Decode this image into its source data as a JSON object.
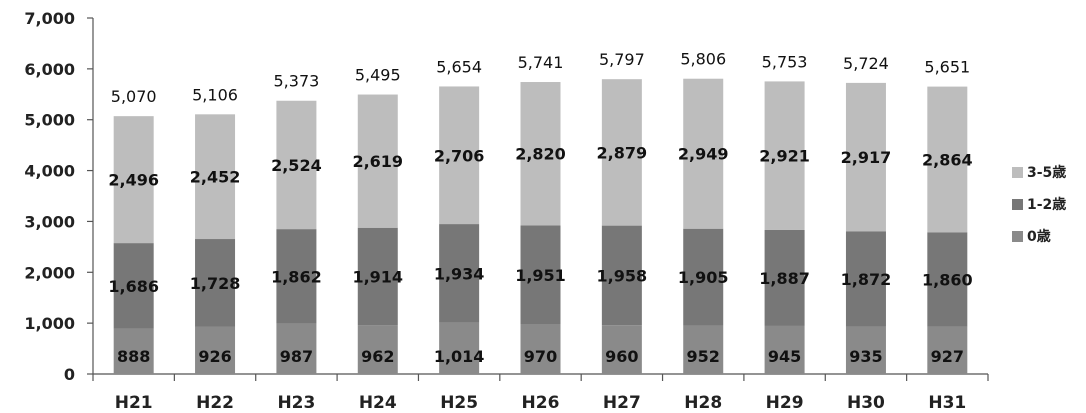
{
  "chart_data": {
    "type": "bar",
    "stacked": true,
    "categories": [
      "H21",
      "H22",
      "H23",
      "H24",
      "H25",
      "H26",
      "H27",
      "H28",
      "H29",
      "H30",
      "H31"
    ],
    "series": [
      {
        "name": "0歳",
        "values": [
          888,
          926,
          987,
          962,
          1014,
          970,
          960,
          952,
          945,
          935,
          927
        ],
        "color": "#8a8a8a"
      },
      {
        "name": "1-2歳",
        "values": [
          1686,
          1728,
          1862,
          1914,
          1934,
          1951,
          1958,
          1905,
          1887,
          1872,
          1860
        ],
        "color": "#777777"
      },
      {
        "name": "3-5歳",
        "values": [
          2496,
          2452,
          2524,
          2619,
          2706,
          2820,
          2879,
          2949,
          2921,
          2917,
          2864
        ],
        "color": "#bdbdbd"
      }
    ],
    "totals": [
      5070,
      5106,
      5373,
      5495,
      5654,
      5741,
      5797,
      5806,
      5753,
      5724,
      5651
    ],
    "y_ticks": [
      "0",
      "1,000",
      "2,000",
      "3,000",
      "4,000",
      "5,000",
      "6,000",
      "7,000"
    ],
    "ylim": [
      0,
      7000
    ],
    "legend_position": "right",
    "legend_order": [
      "3-5歳",
      "1-2歳",
      "0歳"
    ],
    "title": "",
    "xlabel": "",
    "ylabel": "",
    "grid": false
  }
}
